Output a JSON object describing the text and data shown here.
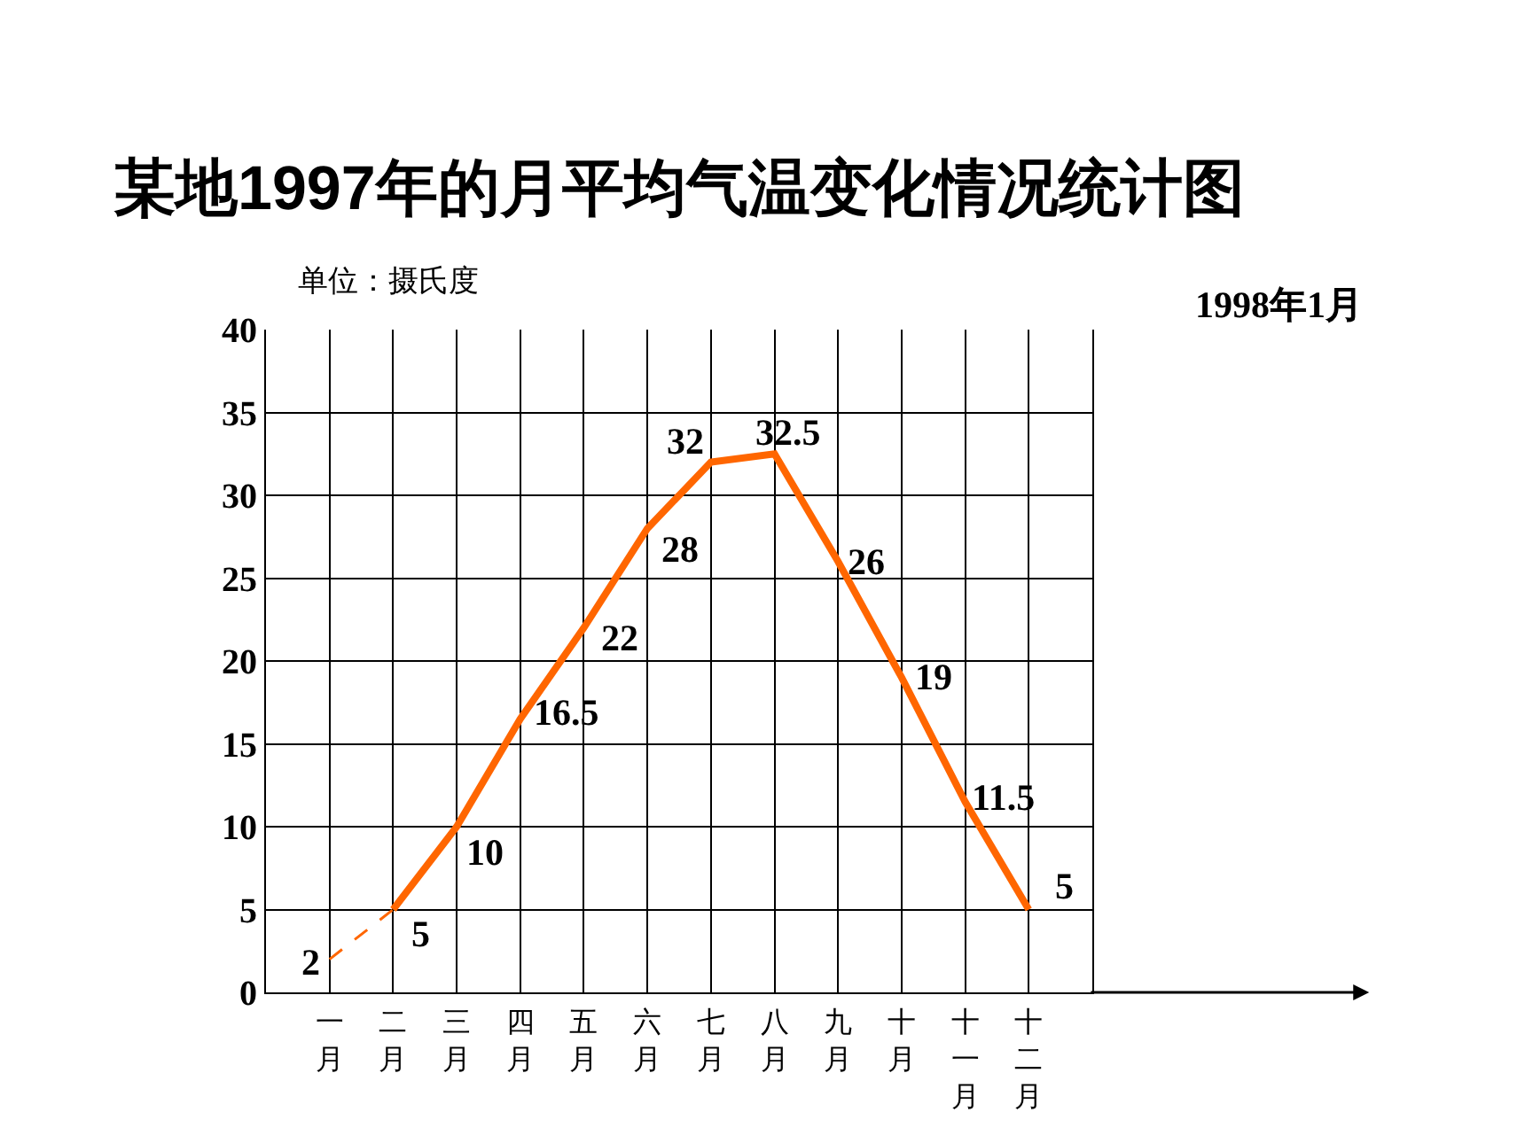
{
  "chart_data": {
    "type": "line",
    "title": "某地1997年的月平均气温变化情况统计图",
    "ylabel": "单位：摄氏度",
    "annotations": [
      "1998年1月"
    ],
    "categories": [
      "一月",
      "二月",
      "三月",
      "四月",
      "五月",
      "六月",
      "七月",
      "八月",
      "九月",
      "十月",
      "十一月",
      "十二月"
    ],
    "series": [
      {
        "color": "#ff6600",
        "line_style": "dashed",
        "values": [
          2,
          5,
          null,
          null,
          null,
          null,
          null,
          null,
          null,
          null,
          null,
          null
        ],
        "value_labels": [
          "2",
          null,
          null,
          null,
          null,
          null,
          null,
          null,
          null,
          null,
          null,
          null
        ]
      },
      {
        "color": "#ff6600",
        "line_style": "solid",
        "values": [
          null,
          5,
          10,
          16.5,
          22,
          28,
          32,
          32.5,
          26,
          19,
          11.5,
          5
        ],
        "value_labels": [
          null,
          "5",
          "10",
          "16.5",
          "22",
          "28",
          "32",
          "32.5",
          "26",
          "19",
          "11.5",
          "5"
        ]
      }
    ],
    "ylim": [
      0,
      40
    ],
    "yticks": [
      0,
      5,
      10,
      15,
      20,
      25,
      30,
      35,
      40
    ],
    "grid": true
  }
}
